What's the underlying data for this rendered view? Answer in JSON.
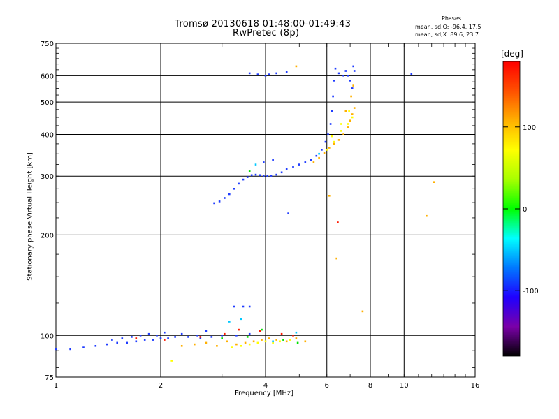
{
  "header": {
    "title_line1": "Tromsø 20130618 01:48:00-01:49:43",
    "title_line2": "RwPretec (8p)"
  },
  "phases": {
    "title": "Phases",
    "o_line": "mean, sd,O: -96.4, 17.5",
    "x_line": "mean, sd,X:  89.6, 23.7"
  },
  "colorbar": {
    "unit_label": "[deg]",
    "range": [
      -180,
      180
    ],
    "tick_labels": [
      "100",
      "0",
      "-100"
    ],
    "colors": [
      "#000000",
      "#7a00a8",
      "#1f00ff",
      "#0078ff",
      "#00ffff",
      "#00ff00",
      "#a8ff00",
      "#ffff00",
      "#ffb000",
      "#ff5000",
      "#ff0000"
    ]
  },
  "chart_data": {
    "type": "scatter",
    "title": "Tromsø 20130618 01:48:00-01:49:43",
    "subtitle": "RwPretec (8p)",
    "xlabel": "Frequency [MHz]",
    "ylabel": "Stationary phase Virtual Height [km]",
    "x_scale": "log",
    "y_scale": "log",
    "xlim": [
      1,
      16
    ],
    "ylim": [
      75,
      750
    ],
    "x_ticks": [
      1,
      2,
      4,
      6,
      8,
      10,
      16
    ],
    "x_tick_labels": [
      "1",
      "2",
      "4",
      "6",
      "8",
      "10",
      "16"
    ],
    "y_ticks": [
      75,
      100,
      200,
      300,
      400,
      500,
      600,
      750
    ],
    "y_tick_labels": [
      "75",
      "100",
      "200",
      "300",
      "400",
      "500",
      "600",
      "750"
    ],
    "grid": true,
    "color_by": "phase [deg]",
    "series": [
      {
        "color": "#1f3cff",
        "points": [
          [
            1.0,
            91
          ],
          [
            1.1,
            91
          ],
          [
            1.2,
            92
          ],
          [
            1.3,
            93
          ],
          [
            1.4,
            94
          ],
          [
            1.5,
            95
          ],
          [
            1.6,
            95
          ],
          [
            1.7,
            96
          ],
          [
            1.8,
            97
          ],
          [
            1.9,
            97
          ],
          [
            2.0,
            98
          ],
          [
            2.1,
            98
          ],
          [
            2.2,
            99
          ],
          [
            2.4,
            99
          ],
          [
            2.6,
            98
          ],
          [
            2.8,
            99
          ],
          [
            3.0,
            100
          ],
          [
            3.3,
            100
          ],
          [
            3.6,
            101
          ],
          [
            1.45,
            97
          ],
          [
            1.55,
            98
          ],
          [
            1.65,
            99
          ],
          [
            1.75,
            100
          ],
          [
            1.85,
            101
          ],
          [
            1.95,
            100
          ],
          [
            2.05,
            102
          ],
          [
            2.3,
            101
          ],
          [
            2.55,
            100
          ],
          [
            2.7,
            103
          ],
          [
            3.25,
            122
          ],
          [
            3.45,
            122
          ],
          [
            3.6,
            122
          ],
          [
            2.85,
            249
          ],
          [
            2.95,
            252
          ],
          [
            3.05,
            258
          ],
          [
            3.15,
            265
          ],
          [
            3.25,
            275
          ],
          [
            3.35,
            285
          ],
          [
            3.45,
            293
          ],
          [
            3.55,
            298
          ],
          [
            3.65,
            302
          ],
          [
            3.75,
            303
          ],
          [
            3.85,
            302
          ],
          [
            3.95,
            301
          ],
          [
            4.05,
            300
          ],
          [
            4.15,
            301
          ],
          [
            4.3,
            303
          ],
          [
            4.45,
            308
          ],
          [
            4.6,
            315
          ],
          [
            4.8,
            320
          ],
          [
            5.0,
            325
          ],
          [
            5.2,
            330
          ],
          [
            5.4,
            335
          ],
          [
            5.6,
            345
          ],
          [
            5.8,
            360
          ],
          [
            5.95,
            380
          ],
          [
            6.05,
            400
          ],
          [
            6.15,
            430
          ],
          [
            6.2,
            470
          ],
          [
            6.25,
            520
          ],
          [
            6.3,
            580
          ],
          [
            6.35,
            630
          ],
          [
            6.5,
            610
          ],
          [
            6.7,
            600
          ],
          [
            6.8,
            620
          ],
          [
            6.9,
            600
          ],
          [
            7.0,
            580
          ],
          [
            7.1,
            550
          ],
          [
            7.15,
            640
          ],
          [
            7.2,
            620
          ],
          [
            3.6,
            610
          ],
          [
            3.8,
            605
          ],
          [
            4.0,
            600
          ],
          [
            4.1,
            605
          ],
          [
            4.3,
            610
          ],
          [
            4.6,
            615
          ],
          [
            10.5,
            607
          ],
          [
            3.95,
            330
          ],
          [
            4.2,
            335
          ],
          [
            4.65,
            232
          ]
        ]
      },
      {
        "color": "#ffb000",
        "points": [
          [
            3.1,
            96
          ],
          [
            3.3,
            94
          ],
          [
            3.5,
            95
          ],
          [
            3.7,
            96
          ],
          [
            3.9,
            97
          ],
          [
            4.1,
            98
          ],
          [
            4.3,
            97
          ],
          [
            4.6,
            96
          ],
          [
            4.9,
            98
          ],
          [
            5.2,
            96
          ],
          [
            2.3,
            93
          ],
          [
            2.5,
            94
          ],
          [
            2.7,
            95
          ],
          [
            2.9,
            93
          ],
          [
            5.5,
            330
          ],
          [
            5.7,
            340
          ],
          [
            5.9,
            352
          ],
          [
            6.1,
            365
          ],
          [
            6.3,
            375
          ],
          [
            6.5,
            385
          ],
          [
            6.7,
            400
          ],
          [
            6.9,
            420
          ],
          [
            7.0,
            440
          ],
          [
            7.1,
            460
          ],
          [
            7.2,
            480
          ],
          [
            6.8,
            470
          ],
          [
            7.05,
            520
          ],
          [
            7.15,
            560
          ],
          [
            4.9,
            640
          ],
          [
            6.1,
            262
          ],
          [
            6.4,
            170
          ],
          [
            7.6,
            118
          ],
          [
            12.2,
            288
          ],
          [
            11.6,
            228
          ]
        ]
      },
      {
        "color": "#ffff00",
        "points": [
          [
            3.2,
            92
          ],
          [
            3.4,
            93
          ],
          [
            3.6,
            94
          ],
          [
            3.8,
            95
          ],
          [
            4.0,
            96
          ],
          [
            4.2,
            95
          ],
          [
            4.4,
            96
          ],
          [
            4.7,
            97
          ],
          [
            6.0,
            360
          ],
          [
            6.3,
            380
          ],
          [
            6.6,
            410
          ],
          [
            6.9,
            430
          ],
          [
            7.1,
            450
          ],
          [
            6.2,
            395
          ],
          [
            6.6,
            430
          ],
          [
            6.95,
            470
          ],
          [
            2.15,
            84
          ]
        ]
      },
      {
        "color": "#ff1a00",
        "points": [
          [
            6.45,
            218
          ],
          [
            1.7,
            98
          ],
          [
            2.05,
            97
          ],
          [
            2.6,
            99
          ],
          [
            3.05,
            101
          ],
          [
            3.35,
            104
          ],
          [
            3.85,
            103
          ],
          [
            4.45,
            101
          ],
          [
            4.8,
            100
          ]
        ]
      },
      {
        "color": "#00c8ff",
        "points": [
          [
            3.15,
            110
          ],
          [
            3.4,
            112
          ],
          [
            4.9,
            102
          ],
          [
            4.2,
            96
          ],
          [
            5.7,
            350
          ],
          [
            3.75,
            325
          ]
        ]
      },
      {
        "color": "#00e000",
        "points": [
          [
            3.0,
            98
          ],
          [
            3.55,
            99
          ],
          [
            3.9,
            104
          ],
          [
            4.5,
            97
          ],
          [
            4.95,
            95
          ],
          [
            3.6,
            310
          ]
        ]
      }
    ]
  }
}
